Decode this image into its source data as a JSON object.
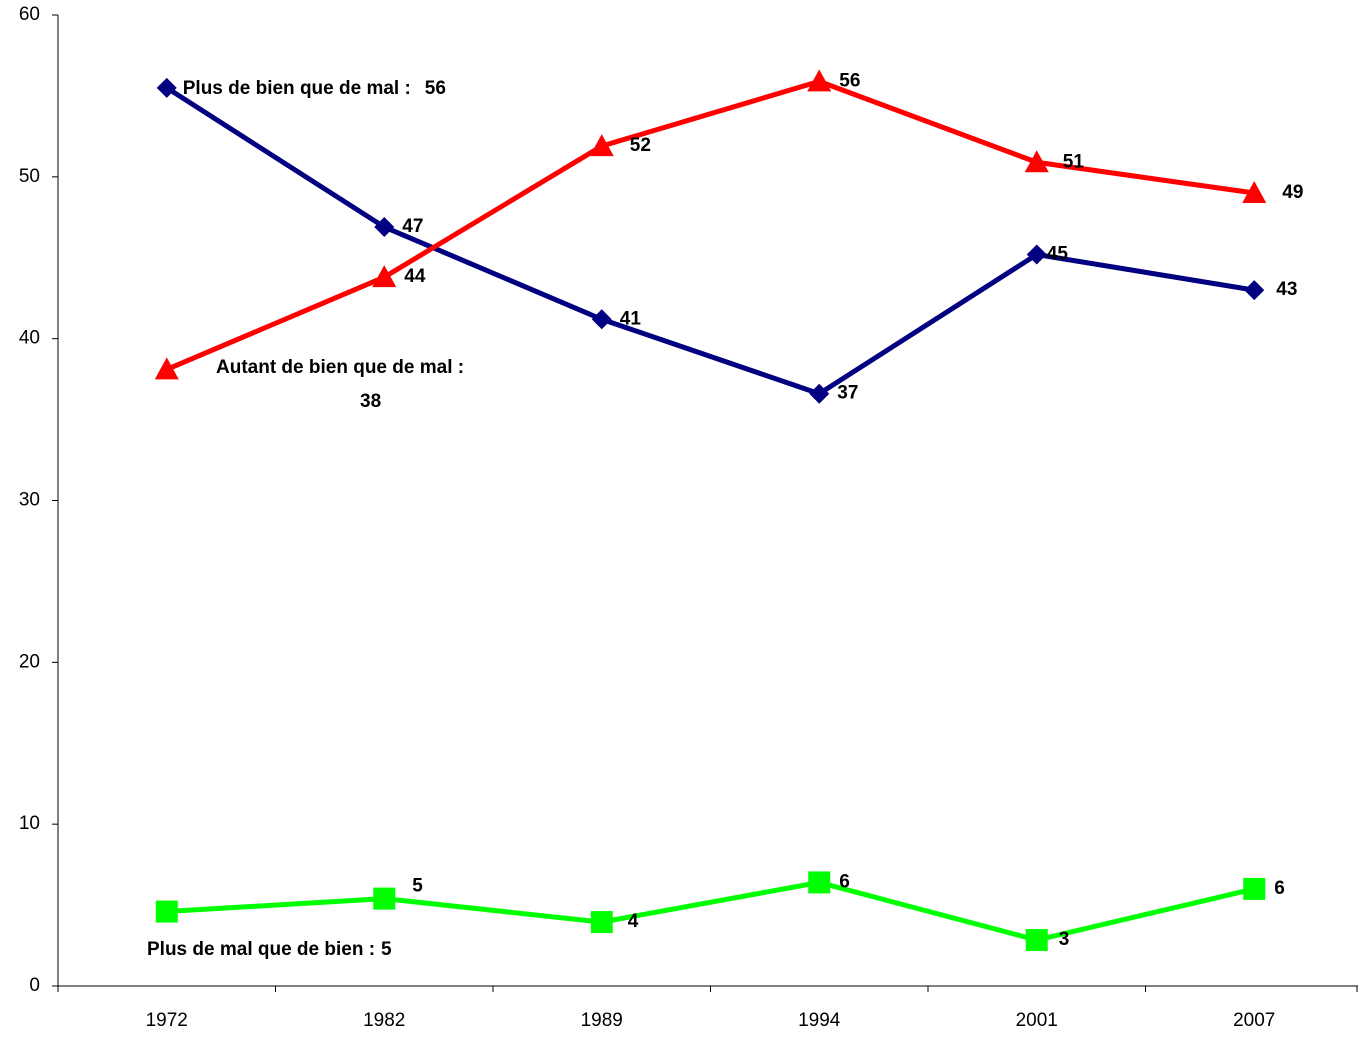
{
  "chart_data": {
    "type": "line",
    "categories": [
      "1972",
      "1982",
      "1989",
      "1994",
      "2001",
      "2007"
    ],
    "ylim": [
      0,
      60
    ],
    "yticks": [
      0,
      10,
      20,
      30,
      40,
      50,
      60
    ],
    "series": [
      {
        "name": "Plus de bien que de mal :",
        "color": "#000080",
        "marker": "diamond",
        "values": [
          55.5,
          46.9,
          41.2,
          36.6,
          45.2,
          43.0
        ],
        "value_labels": [
          "56",
          "47",
          "41",
          "37",
          "45",
          "43"
        ]
      },
      {
        "name": "Autant de bien que de mal :",
        "color": "#ff0000",
        "marker": "triangle",
        "values": [
          38.1,
          43.8,
          51.9,
          55.9,
          50.9,
          49.0
        ],
        "value_labels": [
          "38",
          "44",
          "52",
          "56",
          "51",
          "49"
        ]
      },
      {
        "name": "Plus de mal que de bien :",
        "color": "#00ff00",
        "marker": "square",
        "values": [
          4.6,
          5.4,
          3.95,
          6.4,
          2.84,
          6.0
        ],
        "value_labels": [
          "5",
          "5",
          "4",
          "6",
          "3",
          "6"
        ]
      }
    ]
  }
}
